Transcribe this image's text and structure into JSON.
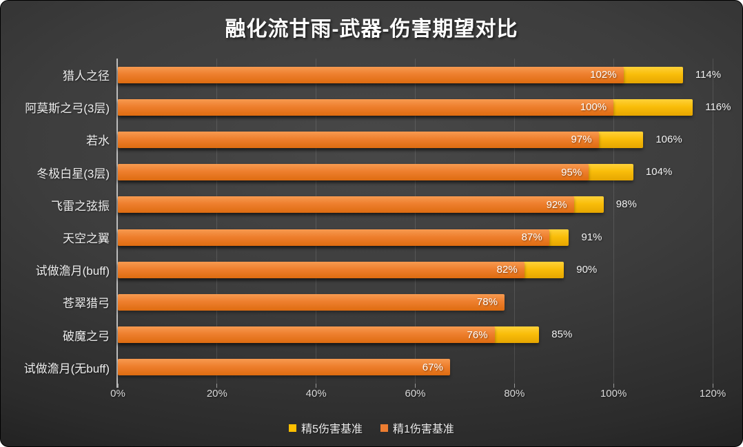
{
  "title": "融化流甘雨-武器-伤害期望对比",
  "chart_data": {
    "type": "bar",
    "orientation": "horizontal",
    "title": "融化流甘雨-武器-伤害期望对比",
    "categories": [
      "猎人之径",
      "阿莫斯之弓(3层)",
      "若水",
      "冬极白星(3层)",
      "飞雷之弦振",
      "天空之翼",
      "试做澹月(buff)",
      "苍翠猎弓",
      "破魔之弓",
      "试做澹月(无buff)"
    ],
    "series": [
      {
        "name": "精5伤害基准",
        "color": "#FFC000",
        "values": [
          114,
          116,
          106,
          104,
          98,
          91,
          90,
          null,
          85,
          null
        ],
        "labels": [
          "114%",
          "116%",
          "106%",
          "104%",
          "98%",
          "91%",
          "90%",
          null,
          "85%",
          null
        ]
      },
      {
        "name": "精1伤害基准",
        "color": "#ED7D31",
        "values": [
          102,
          100,
          97,
          95,
          92,
          87,
          82,
          78,
          76,
          67
        ],
        "labels": [
          "102%",
          "100%",
          "97%",
          "95%",
          "92%",
          "87%",
          "82%",
          "78%",
          "76%",
          "67%"
        ]
      }
    ],
    "x_ticks": [
      "0%",
      "20%",
      "40%",
      "60%",
      "80%",
      "100%",
      "120%"
    ],
    "xlim": [
      0,
      120
    ],
    "value_suffix": "%",
    "gridlines": true,
    "legend_position": "bottom"
  }
}
